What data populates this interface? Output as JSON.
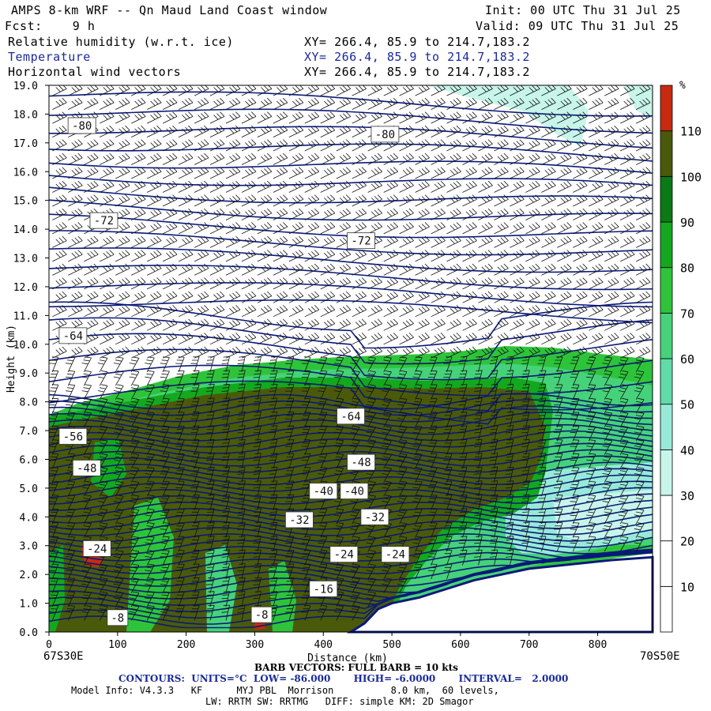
{
  "header": {
    "model_title": "AMPS 8-km WRF -- Qn Maud Land Coast window",
    "init_label": "Init: 00 UTC Thu 31 Jul 25",
    "forecast_label": "Fcst:    9 h",
    "valid_label": "Valid: 09 UTC Thu 31 Jul 25",
    "fields": [
      {
        "name": "Relative humidity (w.r.t. ice)",
        "xy": "XY= 266.4, 85.9 to 214.7,183.2"
      },
      {
        "name": "Temperature",
        "xy": "XY= 266.4, 85.9 to 214.7,183.2"
      },
      {
        "name": "Horizontal wind vectors",
        "xy": "XY= 266.4, 85.9 to 214.7,183.2"
      }
    ]
  },
  "colors": {
    "contour": "#0a1a7a",
    "wind_barb": "#111111",
    "terrain": "#ffffff"
  },
  "chart_data": {
    "type": "heatmap",
    "xlabel": "Distance (km)",
    "ylabel": "Height (km)",
    "xlim": [
      0,
      880
    ],
    "ylim": [
      0,
      19
    ],
    "x_ticks": [
      0,
      100,
      200,
      300,
      400,
      500,
      600,
      700,
      800
    ],
    "y_ticks": [
      "0.0",
      "1.0",
      "2.0",
      "3.0",
      "4.0",
      "5.0",
      "6.0",
      "7.0",
      "8.0",
      "9.0",
      "10.0",
      "11.0",
      "12.0",
      "13.0",
      "14.0",
      "15.0",
      "16.0",
      "17.0",
      "18.0",
      "19.0"
    ],
    "left_endpoint": "67S30E",
    "right_endpoint": "70S50E",
    "colorbar": {
      "unit": "%",
      "labels": [
        10,
        20,
        30,
        40,
        50,
        60,
        70,
        80,
        90,
        100,
        110
      ],
      "colors": [
        "#ffffff",
        "#ffffff",
        "#ffffff",
        "#c8f5ea",
        "#98ead8",
        "#60dca8",
        "#46d27a",
        "#2ec43a",
        "#14a81e",
        "#0a7a14",
        "#4a5a0a",
        "#c82a10"
      ]
    },
    "temperature_labels": [
      {
        "value": "-80",
        "x": 48,
        "y": 17.6
      },
      {
        "value": "-80",
        "x": 490,
        "y": 17.3
      },
      {
        "value": "-72",
        "x": 80,
        "y": 14.3
      },
      {
        "value": "-72",
        "x": 455,
        "y": 13.6
      },
      {
        "value": "-64",
        "x": 35,
        "y": 10.3
      },
      {
        "value": "-64",
        "x": 440,
        "y": 7.5
      },
      {
        "value": "-56",
        "x": 35,
        "y": 6.8
      },
      {
        "value": "-48",
        "x": 55,
        "y": 5.7
      },
      {
        "value": "-48",
        "x": 455,
        "y": 5.9
      },
      {
        "value": "-40",
        "x": 400,
        "y": 4.9
      },
      {
        "value": "-40",
        "x": 445,
        "y": 4.9
      },
      {
        "value": "-32",
        "x": 365,
        "y": 3.9
      },
      {
        "value": "-32",
        "x": 475,
        "y": 4.0
      },
      {
        "value": "-24",
        "x": 70,
        "y": 2.9
      },
      {
        "value": "-24",
        "x": 430,
        "y": 2.7
      },
      {
        "value": "-24",
        "x": 505,
        "y": 2.7
      },
      {
        "value": "-16",
        "x": 400,
        "y": 1.5
      },
      {
        "value": "-8",
        "x": 100,
        "y": 0.5
      },
      {
        "value": "-8",
        "x": 310,
        "y": 0.6
      }
    ],
    "terrain_profile": {
      "x": [
        440,
        460,
        480,
        500,
        540,
        580,
        620,
        660,
        700,
        740,
        780,
        820,
        880
      ],
      "height_km": [
        0.0,
        0.3,
        0.8,
        1.0,
        1.2,
        1.5,
        1.8,
        2.0,
        2.2,
        2.3,
        2.4,
        2.5,
        2.6
      ]
    },
    "rh_regions": [
      {
        "level": 110,
        "polygon": [
          [
            45,
            2.9
          ],
          [
            55,
            3.1
          ],
          [
            70,
            3.1
          ],
          [
            78,
            2.7
          ],
          [
            75,
            2.2
          ],
          [
            60,
            2.2
          ],
          [
            48,
            2.5
          ]
        ]
      },
      {
        "level": 100,
        "polygon": [
          [
            0,
            7.6
          ],
          [
            200,
            7.8
          ],
          [
            450,
            8.0
          ],
          [
            600,
            7.9
          ],
          [
            690,
            7.6
          ],
          [
            700,
            6.5
          ],
          [
            690,
            4.5
          ],
          [
            640,
            3.5
          ],
          [
            600,
            3.2
          ],
          [
            540,
            2.6
          ],
          [
            500,
            1.4
          ],
          [
            460,
            0.4
          ],
          [
            440,
            0
          ],
          [
            0,
            0
          ]
        ]
      }
    ]
  },
  "footer": {
    "barb_line": "BARB VECTORS: FULL BARB = 10 kts",
    "contours_line": "CONTOURS:  UNITS=°C  LOW= -86.000       HIGH= -6.0000       INTERVAL=   2.0000",
    "model_info_line": "Model Info: V4.3.3   KF      MYJ PBL  Morrison          8.0 km,  60 levels,",
    "physics_line": "LW: RRTM SW: RRTMG   DIFF: simple KM: 2D Smagor"
  }
}
